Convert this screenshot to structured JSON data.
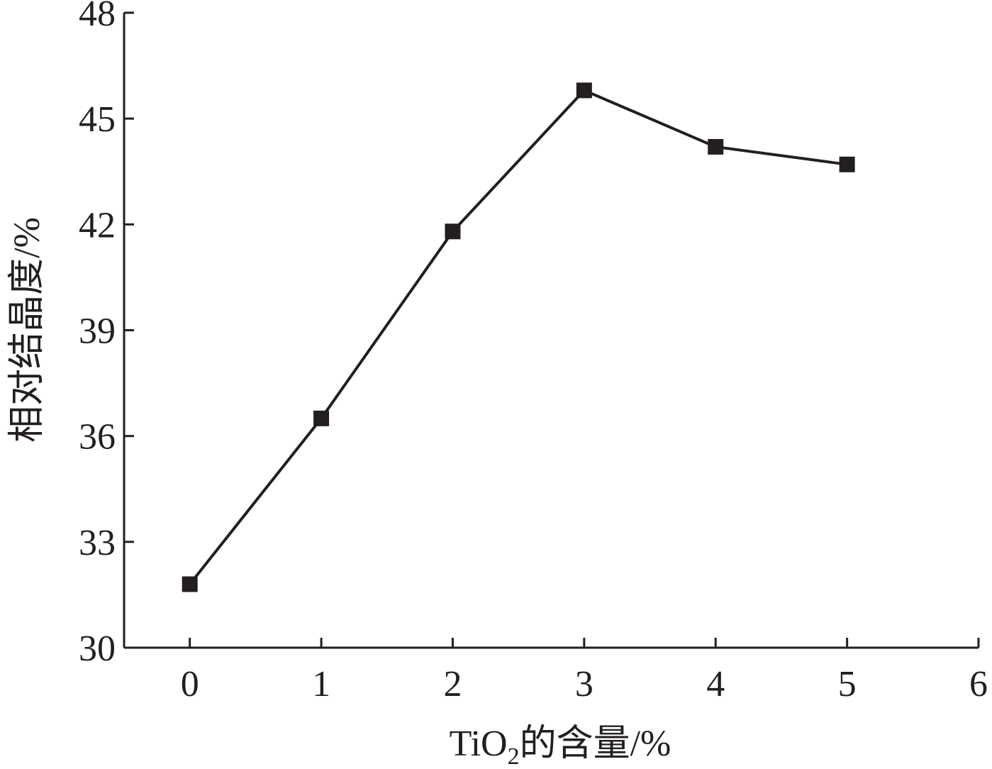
{
  "chart_data": {
    "type": "line",
    "title": "",
    "xlabel": "TiO",
    "xlabel_subscript": "2",
    "xlabel_suffix": "的含量/%",
    "ylabel": "相对结晶度/%",
    "xlim": [
      -0.5,
      6
    ],
    "ylim": [
      30,
      48
    ],
    "xticks": [
      "0",
      "1",
      "2",
      "3",
      "4",
      "5",
      "6"
    ],
    "yticks": [
      "30",
      "33",
      "36",
      "39",
      "42",
      "45",
      "48"
    ],
    "grid": false,
    "x": [
      0,
      1,
      2,
      3,
      4,
      5
    ],
    "values": [
      31.8,
      36.5,
      41.8,
      45.8,
      44.2,
      43.7
    ],
    "line_color": "#231f20",
    "marker": "square"
  }
}
